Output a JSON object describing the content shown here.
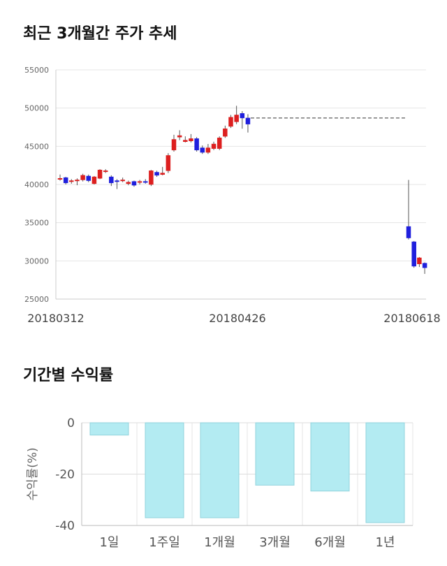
{
  "titles": {
    "price_trend": "최근 3개월간 주가 추세",
    "returns": "기간별 수익률"
  },
  "chart_data": [
    {
      "type": "candlestick",
      "ylim": [
        25000,
        55000
      ],
      "yticks": [
        "55000",
        "50000",
        "45000",
        "40000",
        "35000",
        "30000",
        "25000"
      ],
      "ytick_values": [
        55000,
        50000,
        45000,
        40000,
        35000,
        30000,
        25000
      ],
      "xtick_labels": [
        "20180312",
        "20180426",
        "20180618"
      ],
      "grid": true,
      "colors": {
        "up": "#dd1f1f",
        "down": "#1f1fdd",
        "wick": "#555555",
        "reference": "#333333"
      },
      "reference_line": {
        "value": 48700,
        "style": "dashed"
      },
      "candles": [
        {
          "open": 40700,
          "close": 40800,
          "high": 41300,
          "low": 40500
        },
        {
          "open": 40900,
          "close": 40200,
          "high": 41000,
          "low": 40000
        },
        {
          "open": 40400,
          "close": 40500,
          "high": 40700,
          "low": 40100
        },
        {
          "open": 40500,
          "close": 40600,
          "high": 40800,
          "low": 39900
        },
        {
          "open": 40600,
          "close": 41200,
          "high": 41400,
          "low": 40400
        },
        {
          "open": 41100,
          "close": 40500,
          "high": 41300,
          "low": 40300
        },
        {
          "open": 40100,
          "close": 41000,
          "high": 41100,
          "low": 40000
        },
        {
          "open": 40800,
          "close": 41900,
          "high": 42000,
          "low": 40700
        },
        {
          "open": 41700,
          "close": 41800,
          "high": 42000,
          "low": 41500
        },
        {
          "open": 41000,
          "close": 40200,
          "high": 41200,
          "low": 39800
        },
        {
          "open": 40500,
          "close": 40400,
          "high": 40700,
          "low": 39400
        },
        {
          "open": 40500,
          "close": 40600,
          "high": 40900,
          "low": 40300
        },
        {
          "open": 40100,
          "close": 40300,
          "high": 40500,
          "low": 39900
        },
        {
          "open": 40400,
          "close": 39900,
          "high": 40500,
          "low": 39700
        },
        {
          "open": 40300,
          "close": 40400,
          "high": 40600,
          "low": 40000
        },
        {
          "open": 40400,
          "close": 40300,
          "high": 40700,
          "low": 40100
        },
        {
          "open": 40000,
          "close": 41800,
          "high": 41900,
          "low": 39800
        },
        {
          "open": 41600,
          "close": 41200,
          "high": 41800,
          "low": 41000
        },
        {
          "open": 41300,
          "close": 41500,
          "high": 42300,
          "low": 41200
        },
        {
          "open": 41800,
          "close": 43800,
          "high": 44100,
          "low": 41500
        },
        {
          "open": 44500,
          "close": 45900,
          "high": 46500,
          "low": 44300
        },
        {
          "open": 46200,
          "close": 46400,
          "high": 47100,
          "low": 45800
        },
        {
          "open": 45600,
          "close": 45800,
          "high": 46300,
          "low": 45500
        },
        {
          "open": 45700,
          "close": 46000,
          "high": 46600,
          "low": 45500
        },
        {
          "open": 46000,
          "close": 44500,
          "high": 46200,
          "low": 44300
        },
        {
          "open": 44800,
          "close": 44200,
          "high": 45100,
          "low": 44000
        },
        {
          "open": 44200,
          "close": 44800,
          "high": 45300,
          "low": 44000
        },
        {
          "open": 44700,
          "close": 45300,
          "high": 45600,
          "low": 44500
        },
        {
          "open": 44700,
          "close": 46100,
          "high": 46300,
          "low": 44500
        },
        {
          "open": 46300,
          "close": 47300,
          "high": 47700,
          "low": 46100
        },
        {
          "open": 47600,
          "close": 48800,
          "high": 49100,
          "low": 47400
        },
        {
          "open": 48200,
          "close": 49100,
          "high": 50300,
          "low": 47900
        },
        {
          "open": 49300,
          "close": 48700,
          "high": 49600,
          "low": 47300
        },
        {
          "open": 48700,
          "close": 47900,
          "high": 49200,
          "low": 46800
        },
        {
          "open": 34500,
          "close": 33000,
          "high": 40600,
          "low": 32800
        },
        {
          "open": 32500,
          "close": 29300,
          "high": 32600,
          "low": 29100
        },
        {
          "open": 29600,
          "close": 30400,
          "high": 30500,
          "low": 29200
        },
        {
          "open": 29700,
          "close": 29100,
          "high": 29800,
          "low": 28300
        }
      ]
    },
    {
      "type": "bar",
      "categories": [
        "1일",
        "1주일",
        "1개월",
        "3개월",
        "6개월",
        "1년"
      ],
      "values": [
        -4.8,
        -37.0,
        -37.0,
        -24.3,
        -26.6,
        -38.9
      ],
      "ylabel": "수익률(%)",
      "ylim": [
        -40,
        0
      ],
      "yticks": [
        "0",
        "-20",
        "-40"
      ],
      "ytick_values": [
        0,
        -20,
        -40
      ],
      "grid": true,
      "colors": {
        "bar_fill": "#b3ebf2",
        "bar_stroke": "#92d3dc"
      }
    }
  ]
}
